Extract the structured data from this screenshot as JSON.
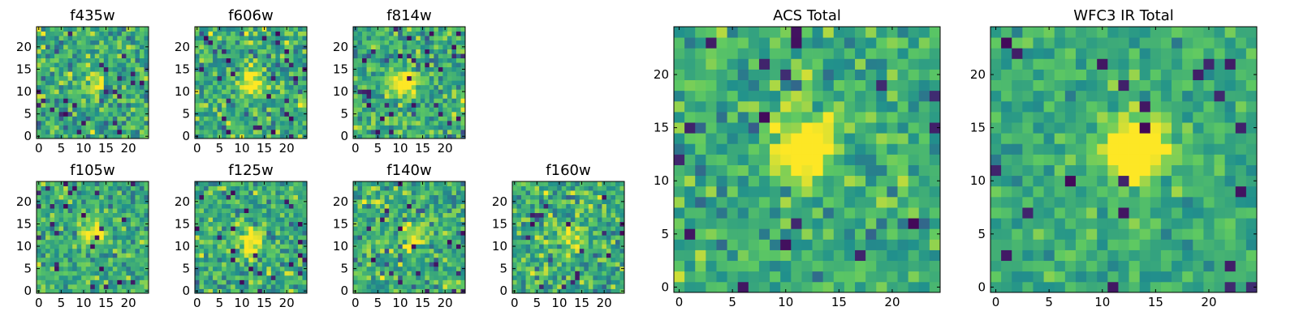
{
  "colormap": [
    "#440154",
    "#3b528b",
    "#21918c",
    "#5ec962",
    "#fde725"
  ],
  "chart_data": [
    {
      "type": "heatmap",
      "title": "f435w",
      "grid_size": 25,
      "xticks": [
        0,
        5,
        10,
        15,
        20
      ],
      "yticks": [
        0,
        5,
        10,
        15,
        20
      ],
      "xlim": [
        0,
        25
      ],
      "ylim": [
        0,
        25
      ],
      "source_center": [
        12,
        12
      ],
      "source_strength": 0.25,
      "noise": 1.0,
      "seed": 11
    },
    {
      "type": "heatmap",
      "title": "f606w",
      "grid_size": 25,
      "xticks": [
        0,
        5,
        10,
        15,
        20
      ],
      "yticks": [
        0,
        5,
        10,
        15,
        20
      ],
      "xlim": [
        0,
        25
      ],
      "ylim": [
        0,
        25
      ],
      "source_center": [
        12,
        12
      ],
      "source_strength": 0.45,
      "noise": 1.0,
      "seed": 23
    },
    {
      "type": "heatmap",
      "title": "f814w",
      "grid_size": 25,
      "xticks": [
        0,
        5,
        10,
        15,
        20
      ],
      "yticks": [
        0,
        5,
        10,
        15,
        20
      ],
      "xlim": [
        0,
        25
      ],
      "ylim": [
        0,
        25
      ],
      "source_center": [
        11,
        12
      ],
      "source_strength": 0.5,
      "noise": 1.0,
      "seed": 37
    },
    {
      "type": "heatmap",
      "title": "f105w",
      "grid_size": 25,
      "xticks": [
        0,
        5,
        10,
        15,
        20
      ],
      "yticks": [
        0,
        5,
        10,
        15,
        20
      ],
      "xlim": [
        0,
        25
      ],
      "ylim": [
        0,
        25
      ],
      "source_center": [
        12,
        13
      ],
      "source_strength": 0.4,
      "noise": 0.9,
      "seed": 41
    },
    {
      "type": "heatmap",
      "title": "f125w",
      "grid_size": 25,
      "xticks": [
        0,
        5,
        10,
        15,
        20
      ],
      "yticks": [
        0,
        5,
        10,
        15,
        20
      ],
      "xlim": [
        0,
        25
      ],
      "ylim": [
        0,
        25
      ],
      "source_center": [
        12,
        11
      ],
      "source_strength": 0.4,
      "noise": 0.9,
      "seed": 53
    },
    {
      "type": "heatmap",
      "title": "f140w",
      "grid_size": 25,
      "xticks": [
        0,
        5,
        10,
        15,
        20
      ],
      "yticks": [
        0,
        5,
        10,
        15,
        20
      ],
      "xlim": [
        0,
        25
      ],
      "ylim": [
        0,
        25
      ],
      "source_center": [
        13,
        12
      ],
      "source_strength": 0.35,
      "noise": 1.0,
      "seed": 67
    },
    {
      "type": "heatmap",
      "title": "f160w",
      "grid_size": 25,
      "xticks": [
        0,
        5,
        10,
        15,
        20
      ],
      "yticks": [
        0,
        5,
        10,
        15,
        20
      ],
      "xlim": [
        0,
        25
      ],
      "ylim": [
        0,
        25
      ],
      "source_center": [
        12,
        12
      ],
      "source_strength": 0.35,
      "noise": 1.0,
      "seed": 79
    },
    {
      "type": "heatmap",
      "title": "ACS Total",
      "grid_size": 25,
      "xticks": [
        0,
        5,
        10,
        15,
        20
      ],
      "yticks": [
        0,
        5,
        10,
        15,
        20
      ],
      "xlim": [
        0,
        25
      ],
      "ylim": [
        0,
        25
      ],
      "source_center": [
        12,
        13
      ],
      "source_strength": 0.7,
      "noise": 0.8,
      "seed": 97
    },
    {
      "type": "heatmap",
      "title": "WFC3 IR Total",
      "grid_size": 25,
      "xticks": [
        0,
        5,
        10,
        15,
        20
      ],
      "yticks": [
        0,
        5,
        10,
        15,
        20
      ],
      "xlim": [
        0,
        25
      ],
      "ylim": [
        0,
        25
      ],
      "source_center": [
        13,
        13
      ],
      "source_strength": 0.75,
      "noise": 0.6,
      "seed": 131
    }
  ]
}
